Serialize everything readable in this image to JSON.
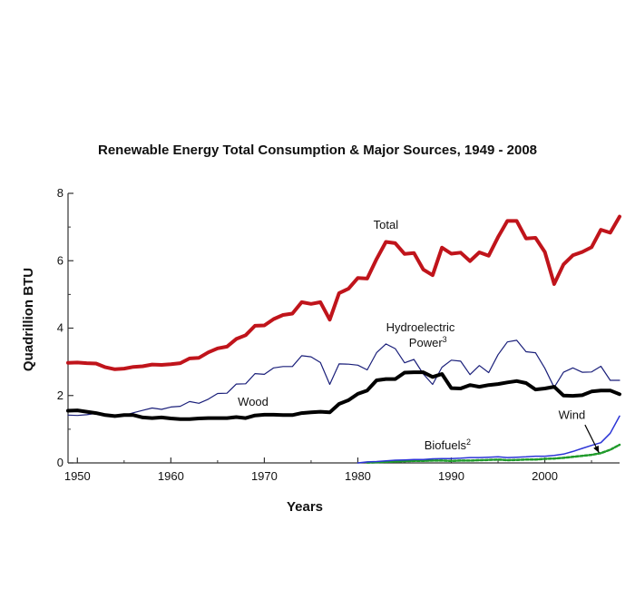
{
  "chart_data": {
    "type": "line",
    "title": "Renewable Energy Total Consumption & Major Sources, 1949 - 2008",
    "xlabel": "Years",
    "ylabel": "Quadrillion BTU",
    "xlim": [
      1949,
      2008
    ],
    "ylim": [
      0,
      8
    ],
    "xticks": [
      1950,
      1960,
      1970,
      1980,
      1990,
      2000
    ],
    "yticks": [
      0,
      2,
      4,
      6,
      8
    ],
    "grid": false,
    "legend": "none",
    "series": [
      {
        "name": "Total",
        "color": "#c0141b",
        "x": [
          1949,
          1950,
          1951,
          1952,
          1953,
          1954,
          1955,
          1956,
          1957,
          1958,
          1959,
          1960,
          1961,
          1962,
          1963,
          1964,
          1965,
          1966,
          1967,
          1968,
          1969,
          1970,
          1971,
          1972,
          1973,
          1974,
          1975,
          1976,
          1977,
          1978,
          1979,
          1980,
          1981,
          1982,
          1983,
          1984,
          1985,
          1986,
          1987,
          1988,
          1989,
          1990,
          1991,
          1992,
          1993,
          1994,
          1995,
          1996,
          1997,
          1998,
          1999,
          2000,
          2001,
          2002,
          2003,
          2004,
          2005,
          2006,
          2007,
          2008
        ],
        "values": [
          2.97,
          2.98,
          2.96,
          2.95,
          2.84,
          2.78,
          2.8,
          2.85,
          2.87,
          2.92,
          2.91,
          2.93,
          2.96,
          3.1,
          3.12,
          3.28,
          3.4,
          3.45,
          3.68,
          3.79,
          4.07,
          4.08,
          4.27,
          4.39,
          4.43,
          4.77,
          4.72,
          4.77,
          4.25,
          5.04,
          5.17,
          5.49,
          5.47,
          6.05,
          6.56,
          6.52,
          6.2,
          6.23,
          5.74,
          5.57,
          6.39,
          6.21,
          6.24,
          5.99,
          6.25,
          6.15,
          6.7,
          7.18,
          7.18,
          6.66,
          6.68,
          6.26,
          5.31,
          5.89,
          6.16,
          6.26,
          6.4,
          6.92,
          6.83,
          7.31
        ]
      },
      {
        "name": "Hydroelectric Power",
        "color": "#1a1f7a",
        "x": [
          1949,
          1950,
          1951,
          1952,
          1953,
          1954,
          1955,
          1956,
          1957,
          1958,
          1959,
          1960,
          1961,
          1962,
          1963,
          1964,
          1965,
          1966,
          1967,
          1968,
          1969,
          1970,
          1971,
          1972,
          1973,
          1974,
          1975,
          1976,
          1977,
          1978,
          1979,
          1980,
          1981,
          1982,
          1983,
          1984,
          1985,
          1986,
          1987,
          1988,
          1989,
          1990,
          1991,
          1992,
          1993,
          1994,
          1995,
          1996,
          1997,
          1998,
          1999,
          2000,
          2001,
          2002,
          2003,
          2004,
          2005,
          2006,
          2007,
          2008
        ],
        "values": [
          1.42,
          1.41,
          1.43,
          1.47,
          1.41,
          1.36,
          1.41,
          1.49,
          1.56,
          1.63,
          1.59,
          1.66,
          1.68,
          1.82,
          1.77,
          1.89,
          2.06,
          2.07,
          2.34,
          2.35,
          2.65,
          2.63,
          2.82,
          2.86,
          2.86,
          3.18,
          3.15,
          2.98,
          2.33,
          2.94,
          2.93,
          2.9,
          2.76,
          3.27,
          3.53,
          3.39,
          2.97,
          3.07,
          2.64,
          2.33,
          2.84,
          3.05,
          3.02,
          2.62,
          2.89,
          2.68,
          3.21,
          3.59,
          3.64,
          3.3,
          3.27,
          2.81,
          2.24,
          2.69,
          2.82,
          2.69,
          2.7,
          2.87,
          2.45,
          2.45
        ]
      },
      {
        "name": "Wood",
        "color": "#000000",
        "x": [
          1949,
          1950,
          1951,
          1952,
          1953,
          1954,
          1955,
          1956,
          1957,
          1958,
          1959,
          1960,
          1961,
          1962,
          1963,
          1964,
          1965,
          1966,
          1967,
          1968,
          1969,
          1970,
          1971,
          1972,
          1973,
          1974,
          1975,
          1976,
          1977,
          1978,
          1979,
          1980,
          1981,
          1982,
          1983,
          1984,
          1985,
          1986,
          1987,
          1988,
          1989,
          1990,
          1991,
          1992,
          1993,
          1994,
          1995,
          1996,
          1997,
          1998,
          1999,
          2000,
          2001,
          2002,
          2003,
          2004,
          2005,
          2006,
          2007,
          2008
        ],
        "values": [
          1.55,
          1.56,
          1.52,
          1.48,
          1.42,
          1.39,
          1.42,
          1.42,
          1.35,
          1.33,
          1.35,
          1.32,
          1.3,
          1.3,
          1.32,
          1.33,
          1.33,
          1.33,
          1.36,
          1.33,
          1.41,
          1.43,
          1.43,
          1.42,
          1.42,
          1.48,
          1.5,
          1.52,
          1.5,
          1.75,
          1.86,
          2.05,
          2.15,
          2.45,
          2.49,
          2.49,
          2.68,
          2.69,
          2.69,
          2.55,
          2.64,
          2.22,
          2.21,
          2.31,
          2.26,
          2.31,
          2.34,
          2.39,
          2.43,
          2.37,
          2.18,
          2.21,
          2.26,
          2.0,
          1.99,
          2.01,
          2.12,
          2.15,
          2.15,
          2.04
        ]
      },
      {
        "name": "Biofuels",
        "color": "#1f9a2a",
        "x": [
          1981,
          1982,
          1983,
          1984,
          1985,
          1986,
          1987,
          1988,
          1989,
          1990,
          1991,
          1992,
          1993,
          1994,
          1995,
          1996,
          1997,
          1998,
          1999,
          2000,
          2001,
          2002,
          2003,
          2004,
          2005,
          2006,
          2007,
          2008
        ],
        "values": [
          0.01,
          0.02,
          0.03,
          0.04,
          0.05,
          0.06,
          0.06,
          0.07,
          0.07,
          0.06,
          0.07,
          0.07,
          0.08,
          0.09,
          0.1,
          0.08,
          0.09,
          0.1,
          0.1,
          0.12,
          0.13,
          0.15,
          0.18,
          0.21,
          0.24,
          0.29,
          0.39,
          0.54
        ]
      },
      {
        "name": "Wind",
        "color": "#2b34d6",
        "x": [
          1980,
          1981,
          1982,
          1983,
          1984,
          1985,
          1986,
          1987,
          1988,
          1989,
          1990,
          1991,
          1992,
          1993,
          1994,
          1995,
          1996,
          1997,
          1998,
          1999,
          2000,
          2001,
          2002,
          2003,
          2004,
          2005,
          2006,
          2007,
          2008
        ],
        "values": [
          0.0,
          0.03,
          0.04,
          0.06,
          0.08,
          0.09,
          0.1,
          0.1,
          0.12,
          0.13,
          0.13,
          0.14,
          0.16,
          0.16,
          0.17,
          0.18,
          0.16,
          0.17,
          0.18,
          0.2,
          0.2,
          0.22,
          0.26,
          0.34,
          0.43,
          0.52,
          0.6,
          0.88,
          1.39
        ]
      }
    ],
    "annotations": [
      {
        "text": "Total",
        "x": 1983.0,
        "y": 6.95
      },
      {
        "text": "Hydroelectric",
        "x": 1986.7,
        "y": 3.9
      },
      {
        "text": "Power",
        "sup": "3",
        "x": 1987.5,
        "y": 3.45
      },
      {
        "text": "Wood",
        "x": 1968.8,
        "y": 1.7
      },
      {
        "text": "Biofuels",
        "sup": "2",
        "x": 1989.6,
        "y": 0.4
      },
      {
        "text": "Wind",
        "x": 2002.9,
        "y": 1.3
      }
    ]
  }
}
